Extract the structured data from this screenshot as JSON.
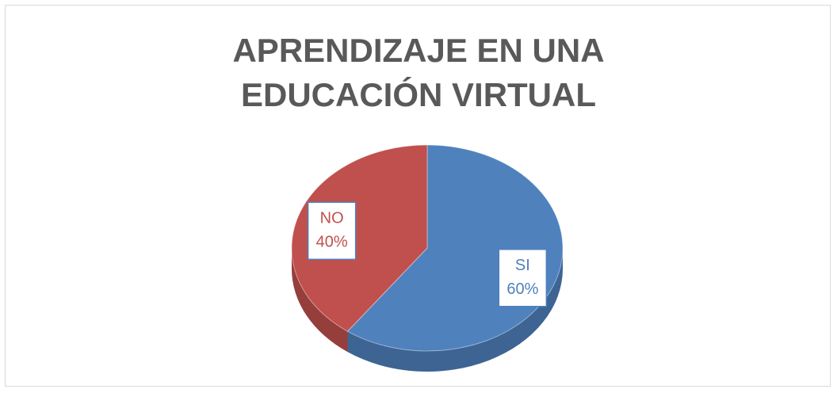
{
  "chart_data": {
    "type": "pie",
    "title": "APRENDIZAJE EN UNA EDUCACIÓN VIRTUAL",
    "categories": [
      "SI",
      "NO"
    ],
    "values": [
      60,
      40
    ],
    "value_labels": [
      "60%",
      "40%"
    ],
    "colors": [
      "#4f81bd",
      "#c0504d"
    ]
  }
}
